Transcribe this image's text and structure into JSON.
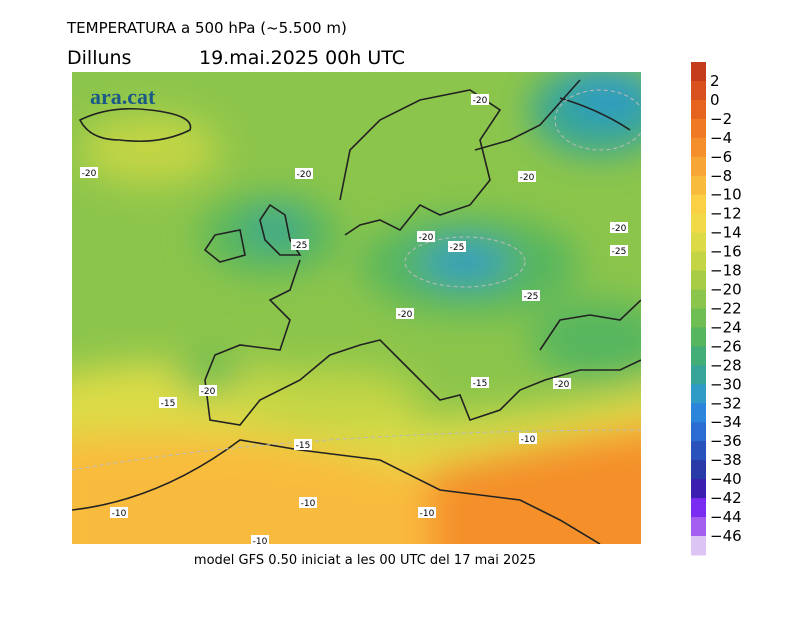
{
  "header": {
    "title": "TEMPERATURA a 500 hPa (~5.500 m)",
    "day": "Dilluns",
    "date": "19.mai.2025 00h UTC"
  },
  "logo": "ara.cat",
  "footer": "model GFS 0.50 iniciat a les 00 UTC del 17 mai 2025",
  "colorbar": {
    "labels": [
      "2",
      "0",
      "−2",
      "−4",
      "−6",
      "−8",
      "−10",
      "−12",
      "−14",
      "−16",
      "−18",
      "−20",
      "−22",
      "−24",
      "−26",
      "−28",
      "−30",
      "−32",
      "−34",
      "−36",
      "−38",
      "−40",
      "−42",
      "−44",
      "−46"
    ],
    "colors": [
      "#c43c1c",
      "#d8501e",
      "#e6631f",
      "#ef7a23",
      "#f48f2b",
      "#f7a535",
      "#f9bb3c",
      "#fbd042",
      "#f1da46",
      "#dcdb47",
      "#c3d545",
      "#a7cd47",
      "#8cc54b",
      "#6fbe53",
      "#56b65f",
      "#43ad78",
      "#36a598",
      "#2f9bc6",
      "#2b85db",
      "#2a6cd1",
      "#2a52bd",
      "#283aa6",
      "#3a1fb0",
      "#7a2cf0",
      "#a45ef0",
      "#dcc4f5"
    ]
  },
  "contour_labels": [
    "-20",
    "-20",
    "-20",
    "-20",
    "-20",
    "-20",
    "-25",
    "-25",
    "-25",
    "-25",
    "-20",
    "-15",
    "-20",
    "-20",
    "-15",
    "-10",
    "-15",
    "-10",
    "-10",
    "-10",
    "-10"
  ]
}
